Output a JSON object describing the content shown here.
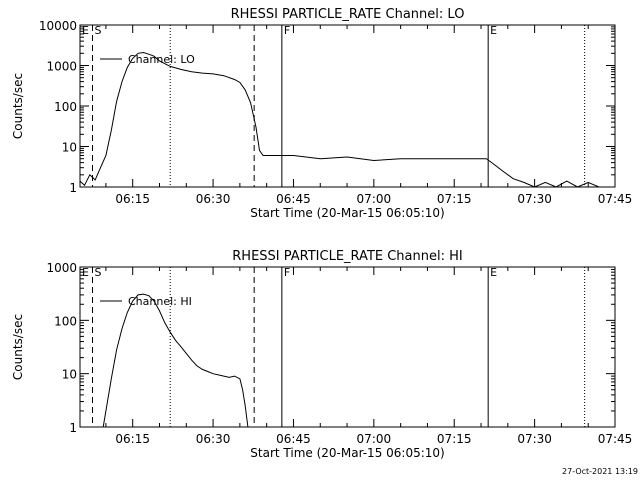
{
  "footer": {
    "timestamp": "27-Oct-2021 13:19"
  },
  "chart_data": [
    {
      "type": "line",
      "title": "RHESSI PARTICLE_RATE Channel: LO",
      "xlabel": "Start Time (20-Mar-15 06:05:10)",
      "ylabel": "Counts/sec",
      "yscale": "log",
      "ylim": [
        1,
        10000
      ],
      "xlim": [
        "06:05:10",
        "07:45:00"
      ],
      "x_ticks": [
        "06:15",
        "06:30",
        "06:45",
        "07:00",
        "07:15",
        "07:30",
        "07:45"
      ],
      "y_ticks": [
        "1",
        "10",
        "100",
        "1000",
        "10000"
      ],
      "legend": {
        "position": "top-left",
        "label": "Channel: LO"
      },
      "annotations": [
        {
          "label": "E",
          "time": "06:05:10",
          "style": "dotted"
        },
        {
          "label": "S",
          "time": "06:07:30",
          "style": "dashed"
        },
        {
          "label": "",
          "time": "06:22:00",
          "style": "dotted"
        },
        {
          "label": "",
          "time": "06:37:40",
          "style": "dashed"
        },
        {
          "label": "F",
          "time": "06:42:50",
          "style": "solid"
        },
        {
          "label": "E",
          "time": "07:21:20",
          "style": "solid"
        },
        {
          "label": "",
          "time": "07:39:20",
          "style": "dotted"
        }
      ],
      "series": [
        {
          "name": "Channel: LO",
          "x": [
            "06:05:10",
            "06:06:00",
            "06:07:00",
            "06:08:00",
            "06:09:00",
            "06:10:00",
            "06:11:00",
            "06:12:00",
            "06:13:00",
            "06:14:00",
            "06:15:00",
            "06:16:00",
            "06:17:00",
            "06:18:00",
            "06:19:00",
            "06:20:00",
            "06:22:00",
            "06:24:00",
            "06:26:00",
            "06:28:00",
            "06:30:00",
            "06:32:00",
            "06:34:00",
            "06:35:00",
            "06:36:00",
            "06:37:00",
            "06:38:00",
            "06:38:40",
            "06:39:20",
            "06:42:00",
            "06:45:00",
            "06:50:00",
            "06:55:00",
            "07:00:00",
            "07:05:00",
            "07:10:00",
            "07:15:00",
            "07:18:00",
            "07:21:00",
            "07:22:00",
            "07:24:00",
            "07:26:00",
            "07:28:00",
            "07:30:00",
            "07:32:00",
            "07:34:00",
            "07:36:00",
            "07:38:00",
            "07:40:00",
            "07:42:00"
          ],
          "y": [
            1.4,
            1.1,
            2.0,
            1.5,
            3.0,
            6.0,
            25,
            130,
            400,
            900,
            1500,
            2000,
            2100,
            1900,
            1700,
            1300,
            950,
            800,
            700,
            650,
            620,
            560,
            450,
            380,
            250,
            120,
            30,
            8,
            6,
            6,
            6,
            5,
            5.5,
            4.5,
            5,
            5,
            5,
            5,
            5,
            4,
            2.5,
            1.6,
            1.3,
            1.0,
            1.3,
            1.0,
            1.4,
            1.0,
            1.3,
            1.0
          ]
        }
      ]
    },
    {
      "type": "line",
      "title": "RHESSI PARTICLE_RATE Channel: HI",
      "xlabel": "Start Time (20-Mar-15 06:05:10)",
      "ylabel": "Counts/sec",
      "yscale": "log",
      "ylim": [
        1,
        1000
      ],
      "xlim": [
        "06:05:10",
        "07:45:00"
      ],
      "x_ticks": [
        "06:15",
        "06:30",
        "06:45",
        "07:00",
        "07:15",
        "07:30",
        "07:45"
      ],
      "y_ticks": [
        "1",
        "10",
        "100",
        "1000"
      ],
      "legend": {
        "position": "top-left",
        "label": "Channel: HI"
      },
      "annotations": [
        {
          "label": "E",
          "time": "06:05:10",
          "style": "dotted"
        },
        {
          "label": "S",
          "time": "06:07:30",
          "style": "dashed"
        },
        {
          "label": "",
          "time": "06:22:00",
          "style": "dotted"
        },
        {
          "label": "",
          "time": "06:37:40",
          "style": "dashed"
        },
        {
          "label": "F",
          "time": "06:42:50",
          "style": "solid"
        },
        {
          "label": "E",
          "time": "07:21:20",
          "style": "solid"
        },
        {
          "label": "",
          "time": "07:39:20",
          "style": "dotted"
        }
      ],
      "series": [
        {
          "name": "Channel: HI",
          "x": [
            "06:09:30",
            "06:10:00",
            "06:11:00",
            "06:12:00",
            "06:13:00",
            "06:14:00",
            "06:15:00",
            "06:16:00",
            "06:17:00",
            "06:18:00",
            "06:19:00",
            "06:20:00",
            "06:21:00",
            "06:22:00",
            "06:23:00",
            "06:24:00",
            "06:25:00",
            "06:26:00",
            "06:27:00",
            "06:28:00",
            "06:29:00",
            "06:30:00",
            "06:31:00",
            "06:32:00",
            "06:33:00",
            "06:34:00",
            "06:35:00",
            "06:35:30",
            "06:36:00",
            "06:36:30"
          ],
          "y": [
            1,
            2,
            8,
            28,
            70,
            140,
            230,
            300,
            310,
            290,
            230,
            150,
            90,
            60,
            42,
            32,
            24,
            18,
            14,
            12,
            11,
            10,
            9.5,
            9,
            8.5,
            9,
            8,
            5,
            2.5,
            1
          ]
        }
      ]
    }
  ]
}
